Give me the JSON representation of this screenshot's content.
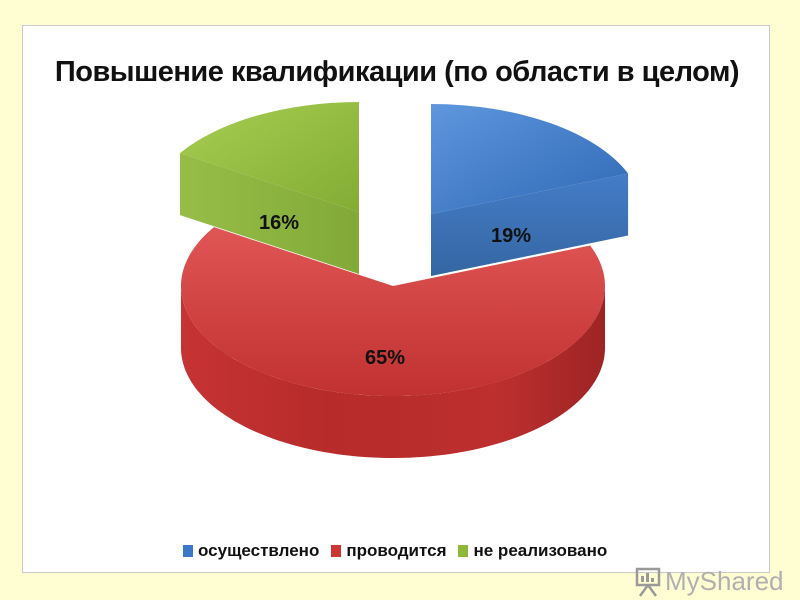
{
  "chart_data": {
    "type": "pie",
    "style": "3d-exploded",
    "title": "Повышение квалификации (по области в целом)",
    "categories": [
      "осуществлено",
      "проводится",
      "не реализовано"
    ],
    "values": [
      19,
      65,
      16
    ],
    "data_labels": [
      "19%",
      "65%",
      "16%"
    ],
    "colors": [
      "#3B78C8",
      "#CC3534",
      "#8DB838"
    ],
    "legend_position": "bottom"
  },
  "watermark": {
    "text": "MyShared",
    "icon": "presentation-board-icon"
  }
}
